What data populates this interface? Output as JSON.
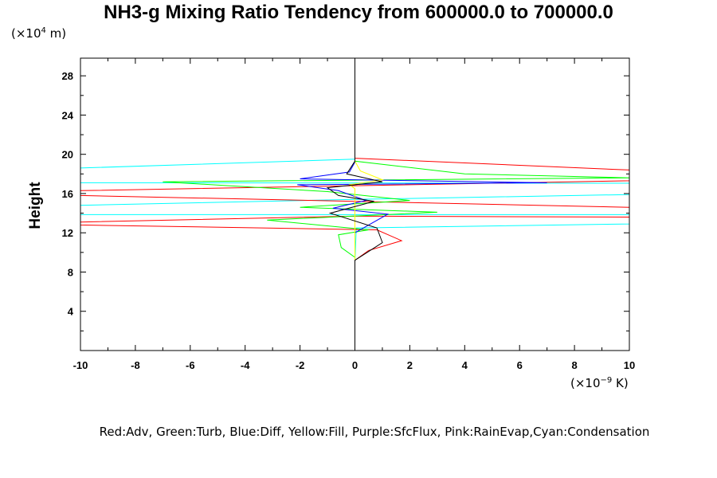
{
  "chart_data": {
    "type": "line",
    "title": "NH3-g Mixing Ratio Tendency from 600000.0 to 700000.0",
    "ylabel": "Height",
    "y_unit_prefix": "(×10",
    "y_unit_exp": "4",
    "y_unit_suffix": " m)",
    "x_unit_prefix": "(×10",
    "x_unit_exp": "−9",
    "x_unit_suffix": " K)",
    "xlim": [
      -10,
      10
    ],
    "ylim": [
      0,
      29.8
    ],
    "x_ticks": [
      "-10",
      "-8",
      "-6",
      "-4",
      "-2",
      "0",
      "2",
      "4",
      "6",
      "8",
      "10"
    ],
    "y_ticks": [
      "4",
      "8",
      "12",
      "16",
      "20",
      "24",
      "28"
    ],
    "legend_text": "Red:Adv, Green:Turb, Blue:Diff, Yellow:Fill, Purple:SfcFlux, Pink:RainEvap,Cyan:Condensation",
    "colors": {
      "adv": "#ff0000",
      "turb": "#00ff00",
      "diff": "#0000ff",
      "fill": "#ffff00",
      "sfcflux": "#a000c8",
      "rainevap": "#ff80c0",
      "condensation": "#00ffff",
      "total": "#000000"
    },
    "series": [
      {
        "key": "condensation",
        "color": "#00ffff",
        "points": [
          [
            0,
            0
          ],
          [
            0,
            9
          ],
          [
            0.05,
            12.5
          ],
          [
            10,
            12.9
          ],
          [
            10,
            13.85
          ],
          [
            -10,
            13.85
          ],
          [
            -10,
            14.8
          ],
          [
            0,
            15.4
          ],
          [
            10,
            15.9
          ],
          [
            10,
            17.05
          ],
          [
            -10,
            17.1
          ],
          [
            -10,
            18.6
          ],
          [
            0,
            19.5
          ],
          [
            0,
            29.8
          ]
        ]
      },
      {
        "key": "adv",
        "color": "#ff0000",
        "points": [
          [
            0,
            0.1
          ],
          [
            0,
            9.2
          ],
          [
            0.5,
            10.2
          ],
          [
            1.7,
            11.2
          ],
          [
            0.8,
            12.3
          ],
          [
            -10,
            12.8
          ],
          [
            -10,
            13.1
          ],
          [
            0,
            13.7
          ],
          [
            10,
            13.6
          ],
          [
            10,
            14.6
          ],
          [
            0,
            15.2
          ],
          [
            -10,
            15.8
          ],
          [
            -10,
            16.3
          ],
          [
            0,
            16.8
          ],
          [
            10,
            17.3
          ],
          [
            10,
            18.4
          ],
          [
            0,
            19.6
          ],
          [
            0,
            29.8
          ]
        ]
      },
      {
        "key": "turb",
        "color": "#00ff00",
        "points": [
          [
            0,
            0.1
          ],
          [
            0,
            9.5
          ],
          [
            -0.5,
            10.5
          ],
          [
            -0.6,
            11.8
          ],
          [
            0.5,
            12.3
          ],
          [
            -3.2,
            13.3
          ],
          [
            3,
            14.1
          ],
          [
            -2,
            14.6
          ],
          [
            2,
            15.3
          ],
          [
            -1,
            16.2
          ],
          [
            -7,
            17.2
          ],
          [
            10,
            17.6
          ],
          [
            4,
            18
          ],
          [
            0,
            19.3
          ],
          [
            0,
            29.8
          ]
        ]
      },
      {
        "key": "diff",
        "color": "#0000ff",
        "points": [
          [
            0,
            0.1
          ],
          [
            0,
            12
          ],
          [
            1.2,
            13.9
          ],
          [
            -0.8,
            14.5
          ],
          [
            0.4,
            15.3
          ],
          [
            -0.6,
            16.3
          ],
          [
            -2.1,
            16.9
          ],
          [
            7,
            17.1
          ],
          [
            -2,
            17.5
          ],
          [
            -0.2,
            18.2
          ],
          [
            0,
            19.2
          ],
          [
            0,
            29.8
          ]
        ]
      },
      {
        "key": "fill",
        "color": "#ffff00",
        "points": [
          [
            0,
            0.1
          ],
          [
            0,
            16.5
          ],
          [
            -0.2,
            16.9
          ],
          [
            1,
            17.4
          ],
          [
            0.2,
            18.3
          ],
          [
            0,
            19.3
          ],
          [
            0,
            29.8
          ]
        ]
      },
      {
        "key": "total",
        "color": "#000000",
        "points": [
          [
            0,
            0.1
          ],
          [
            0,
            9.2
          ],
          [
            1,
            11
          ],
          [
            0.8,
            12.5
          ],
          [
            -0.9,
            14
          ],
          [
            0.7,
            15.2
          ],
          [
            -0.6,
            15.8
          ],
          [
            -1,
            16.6
          ],
          [
            1,
            17.2
          ],
          [
            -0.3,
            18
          ],
          [
            0,
            19.3
          ],
          [
            0,
            29.8
          ]
        ]
      }
    ]
  }
}
